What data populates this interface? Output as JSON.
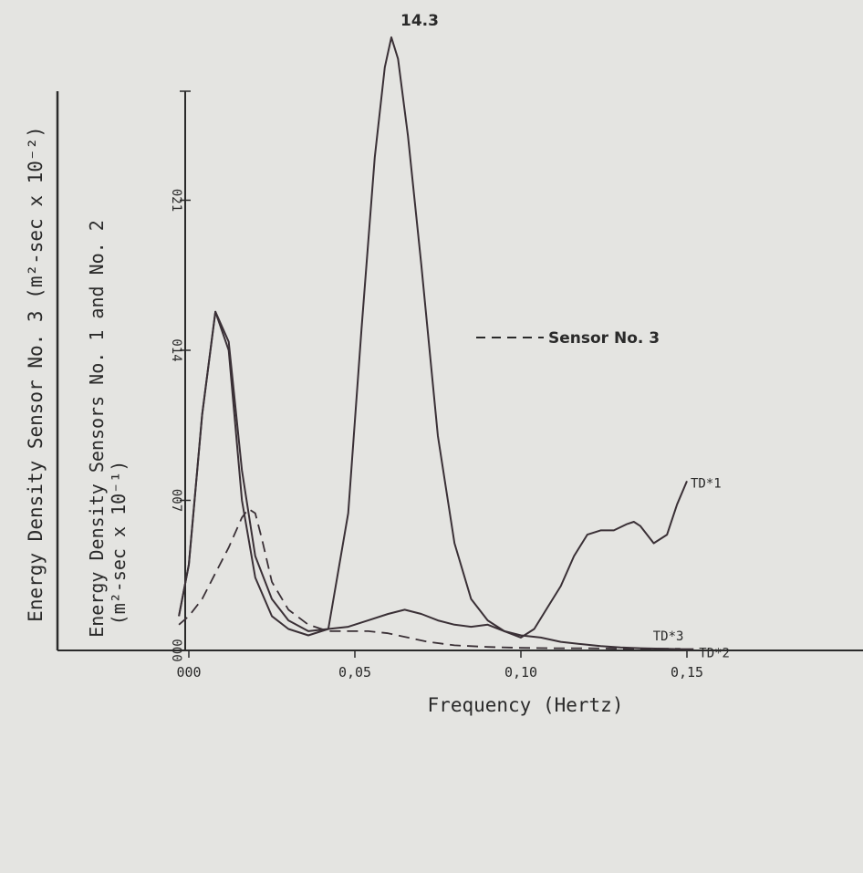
{
  "chart_data": {
    "type": "line",
    "xlabel": "Frequency (Hertz)",
    "ylabel_outer": "Energy Density Sensor No. 3 (m²-sec x 10⁻²)",
    "ylabel_inner": "Energy Density Sensors No. 1 and No. 2",
    "ylabel_inner_units": "(m²-sec x 10⁻¹)",
    "xlim": [
      -0.003,
      0.155
    ],
    "ylim": [
      0,
      15
    ],
    "x_ticks": [
      {
        "value": 0.0,
        "label": "000"
      },
      {
        "value": 0.05,
        "label": "0,05"
      },
      {
        "value": 0.1,
        "label": "0,10"
      },
      {
        "value": 0.15,
        "label": "0,15"
      }
    ],
    "y_ticks": [
      {
        "value": 0,
        "label": "000"
      },
      {
        "value": 3.5,
        "label": "007"
      },
      {
        "value": 7.0,
        "label": "014"
      },
      {
        "value": 10.5,
        "label": "021"
      }
    ],
    "peak_annotation": {
      "x": 0.061,
      "y": 14.3,
      "text": "14.3"
    },
    "legend_text": "Sensor No. 3",
    "series": [
      {
        "name": "TD*1",
        "style": "solid",
        "x": [
          -0.003,
          0.0,
          0.004,
          0.008,
          0.012,
          0.016,
          0.02,
          0.025,
          0.03,
          0.036,
          0.042,
          0.048,
          0.052,
          0.056,
          0.059,
          0.061,
          0.063,
          0.066,
          0.07,
          0.075,
          0.08,
          0.085,
          0.09,
          0.095,
          0.1,
          0.104,
          0.108,
          0.112,
          0.116,
          0.12,
          0.124,
          0.128,
          0.132,
          0.134,
          0.136,
          0.14,
          0.144,
          0.147,
          0.15
        ],
        "y": [
          0.8,
          2.0,
          5.5,
          7.9,
          7.0,
          3.5,
          1.7,
          0.8,
          0.5,
          0.35,
          0.5,
          3.2,
          7.5,
          11.5,
          13.6,
          14.3,
          13.8,
          12.0,
          9.0,
          5.0,
          2.5,
          1.2,
          0.7,
          0.45,
          0.3,
          0.5,
          1.0,
          1.5,
          2.2,
          2.7,
          2.8,
          2.8,
          2.95,
          3.0,
          2.9,
          2.5,
          2.7,
          3.4,
          3.95
        ]
      },
      {
        "name": "TD*2",
        "style": "solid",
        "x": [
          -0.003,
          0.0,
          0.004,
          0.008,
          0.012,
          0.016,
          0.02,
          0.025,
          0.03,
          0.036,
          0.042,
          0.048,
          0.054,
          0.06,
          0.065,
          0.07,
          0.075,
          0.08,
          0.085,
          0.09,
          0.095,
          0.1,
          0.106,
          0.112,
          0.118,
          0.124,
          0.13,
          0.136,
          0.142,
          0.148,
          0.152
        ],
        "y": [
          0.8,
          2.0,
          5.5,
          7.9,
          7.2,
          4.2,
          2.2,
          1.2,
          0.7,
          0.45,
          0.5,
          0.55,
          0.7,
          0.85,
          0.95,
          0.85,
          0.7,
          0.6,
          0.55,
          0.6,
          0.45,
          0.35,
          0.3,
          0.2,
          0.15,
          0.1,
          0.07,
          0.05,
          0.04,
          0.03,
          0.03
        ]
      },
      {
        "name": "TD*3",
        "style": "dashed",
        "x": [
          -0.003,
          0.0,
          0.004,
          0.008,
          0.012,
          0.016,
          0.018,
          0.02,
          0.022,
          0.025,
          0.03,
          0.036,
          0.042,
          0.048,
          0.054,
          0.06,
          0.066,
          0.072,
          0.08,
          0.09,
          0.1,
          0.11,
          0.12,
          0.13,
          0.14,
          0.148
        ],
        "y": [
          0.6,
          0.8,
          1.2,
          1.8,
          2.4,
          3.1,
          3.3,
          3.2,
          2.6,
          1.6,
          0.95,
          0.6,
          0.45,
          0.45,
          0.45,
          0.4,
          0.3,
          0.2,
          0.12,
          0.08,
          0.06,
          0.05,
          0.05,
          0.04,
          0.04,
          0.04
        ]
      }
    ]
  }
}
